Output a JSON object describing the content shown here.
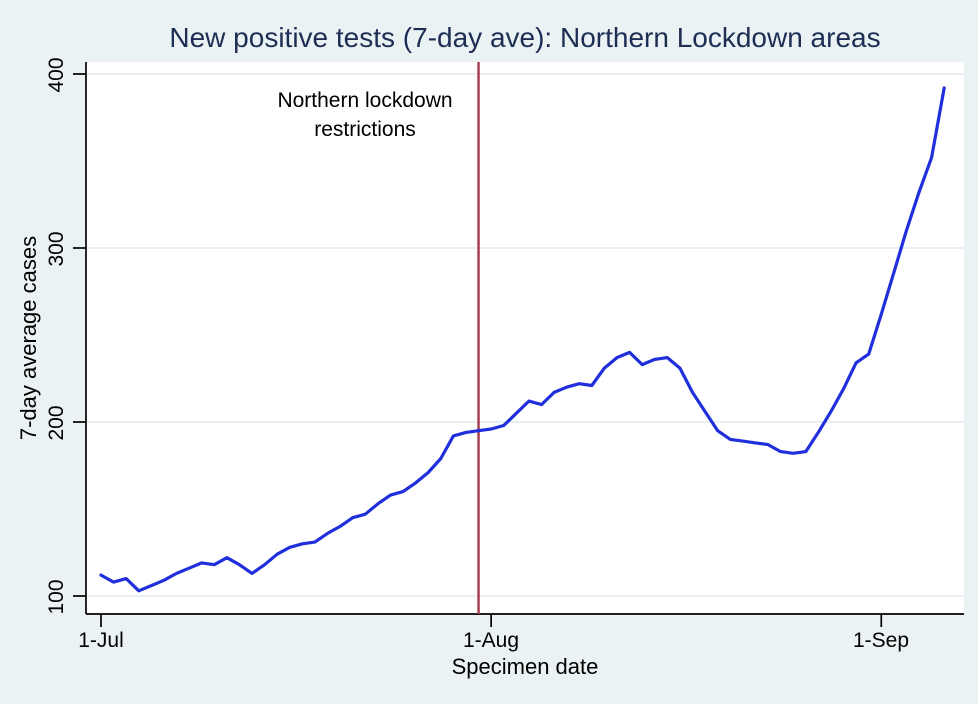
{
  "title": "New positive tests (7-day ave): Northern Lockdown areas",
  "annotation": {
    "line1": "Northern lockdown",
    "line2": "restrictions"
  },
  "colors": {
    "background": "#eaf2f3",
    "plot_background": "#ffffff",
    "title": "#1e2d53",
    "line": "#1f2fdb",
    "vline": "#a43a4a",
    "grid": "#e4eef1",
    "axis": "#000000"
  },
  "chart_data": {
    "type": "line",
    "title": "New positive tests (7-day ave): Northern Lockdown areas",
    "xlabel": "Specimen date",
    "ylabel": "7-day average cases",
    "x_tick_labels": [
      "1-Jul",
      "1-Aug",
      "1-Sep"
    ],
    "x_tick_indices": [
      0,
      31,
      62
    ],
    "y_ticks": [
      100,
      200,
      300,
      400
    ],
    "ylim": [
      88,
      412
    ],
    "grid": true,
    "legend": "none",
    "x": [
      "1-Jul",
      "2-Jul",
      "3-Jul",
      "4-Jul",
      "5-Jul",
      "6-Jul",
      "7-Jul",
      "8-Jul",
      "9-Jul",
      "10-Jul",
      "11-Jul",
      "12-Jul",
      "13-Jul",
      "14-Jul",
      "15-Jul",
      "16-Jul",
      "17-Jul",
      "18-Jul",
      "19-Jul",
      "20-Jul",
      "21-Jul",
      "22-Jul",
      "23-Jul",
      "24-Jul",
      "25-Jul",
      "26-Jul",
      "27-Jul",
      "28-Jul",
      "29-Jul",
      "30-Jul",
      "31-Jul",
      "1-Aug",
      "2-Aug",
      "3-Aug",
      "4-Aug",
      "5-Aug",
      "6-Aug",
      "7-Aug",
      "8-Aug",
      "9-Aug",
      "10-Aug",
      "11-Aug",
      "12-Aug",
      "13-Aug",
      "14-Aug",
      "15-Aug",
      "16-Aug",
      "17-Aug",
      "18-Aug",
      "19-Aug",
      "20-Aug",
      "21-Aug",
      "22-Aug",
      "23-Aug",
      "24-Aug",
      "25-Aug",
      "26-Aug",
      "27-Aug",
      "28-Aug",
      "29-Aug",
      "30-Aug",
      "31-Aug",
      "1-Sep",
      "2-Sep",
      "3-Sep",
      "4-Sep",
      "5-Sep",
      "6-Sep"
    ],
    "series": [
      {
        "name": "7-day average cases",
        "values": [
          112,
          108,
          110,
          103,
          106,
          109,
          113,
          116,
          119,
          118,
          122,
          118,
          113,
          118,
          124,
          128,
          130,
          131,
          136,
          140,
          145,
          147,
          153,
          158,
          160,
          165,
          171,
          179,
          192,
          194,
          195,
          196,
          198,
          205,
          212,
          210,
          217,
          220,
          222,
          221,
          231,
          237,
          240,
          233,
          236,
          237,
          231,
          217,
          206,
          195,
          190,
          189,
          188,
          187,
          183,
          182,
          183,
          194,
          206,
          219,
          234,
          239,
          262,
          286,
          310,
          332,
          352,
          392
        ]
      }
    ],
    "vline": {
      "x": "31-Jul",
      "index": 30,
      "label": "Northern lockdown restrictions"
    }
  }
}
